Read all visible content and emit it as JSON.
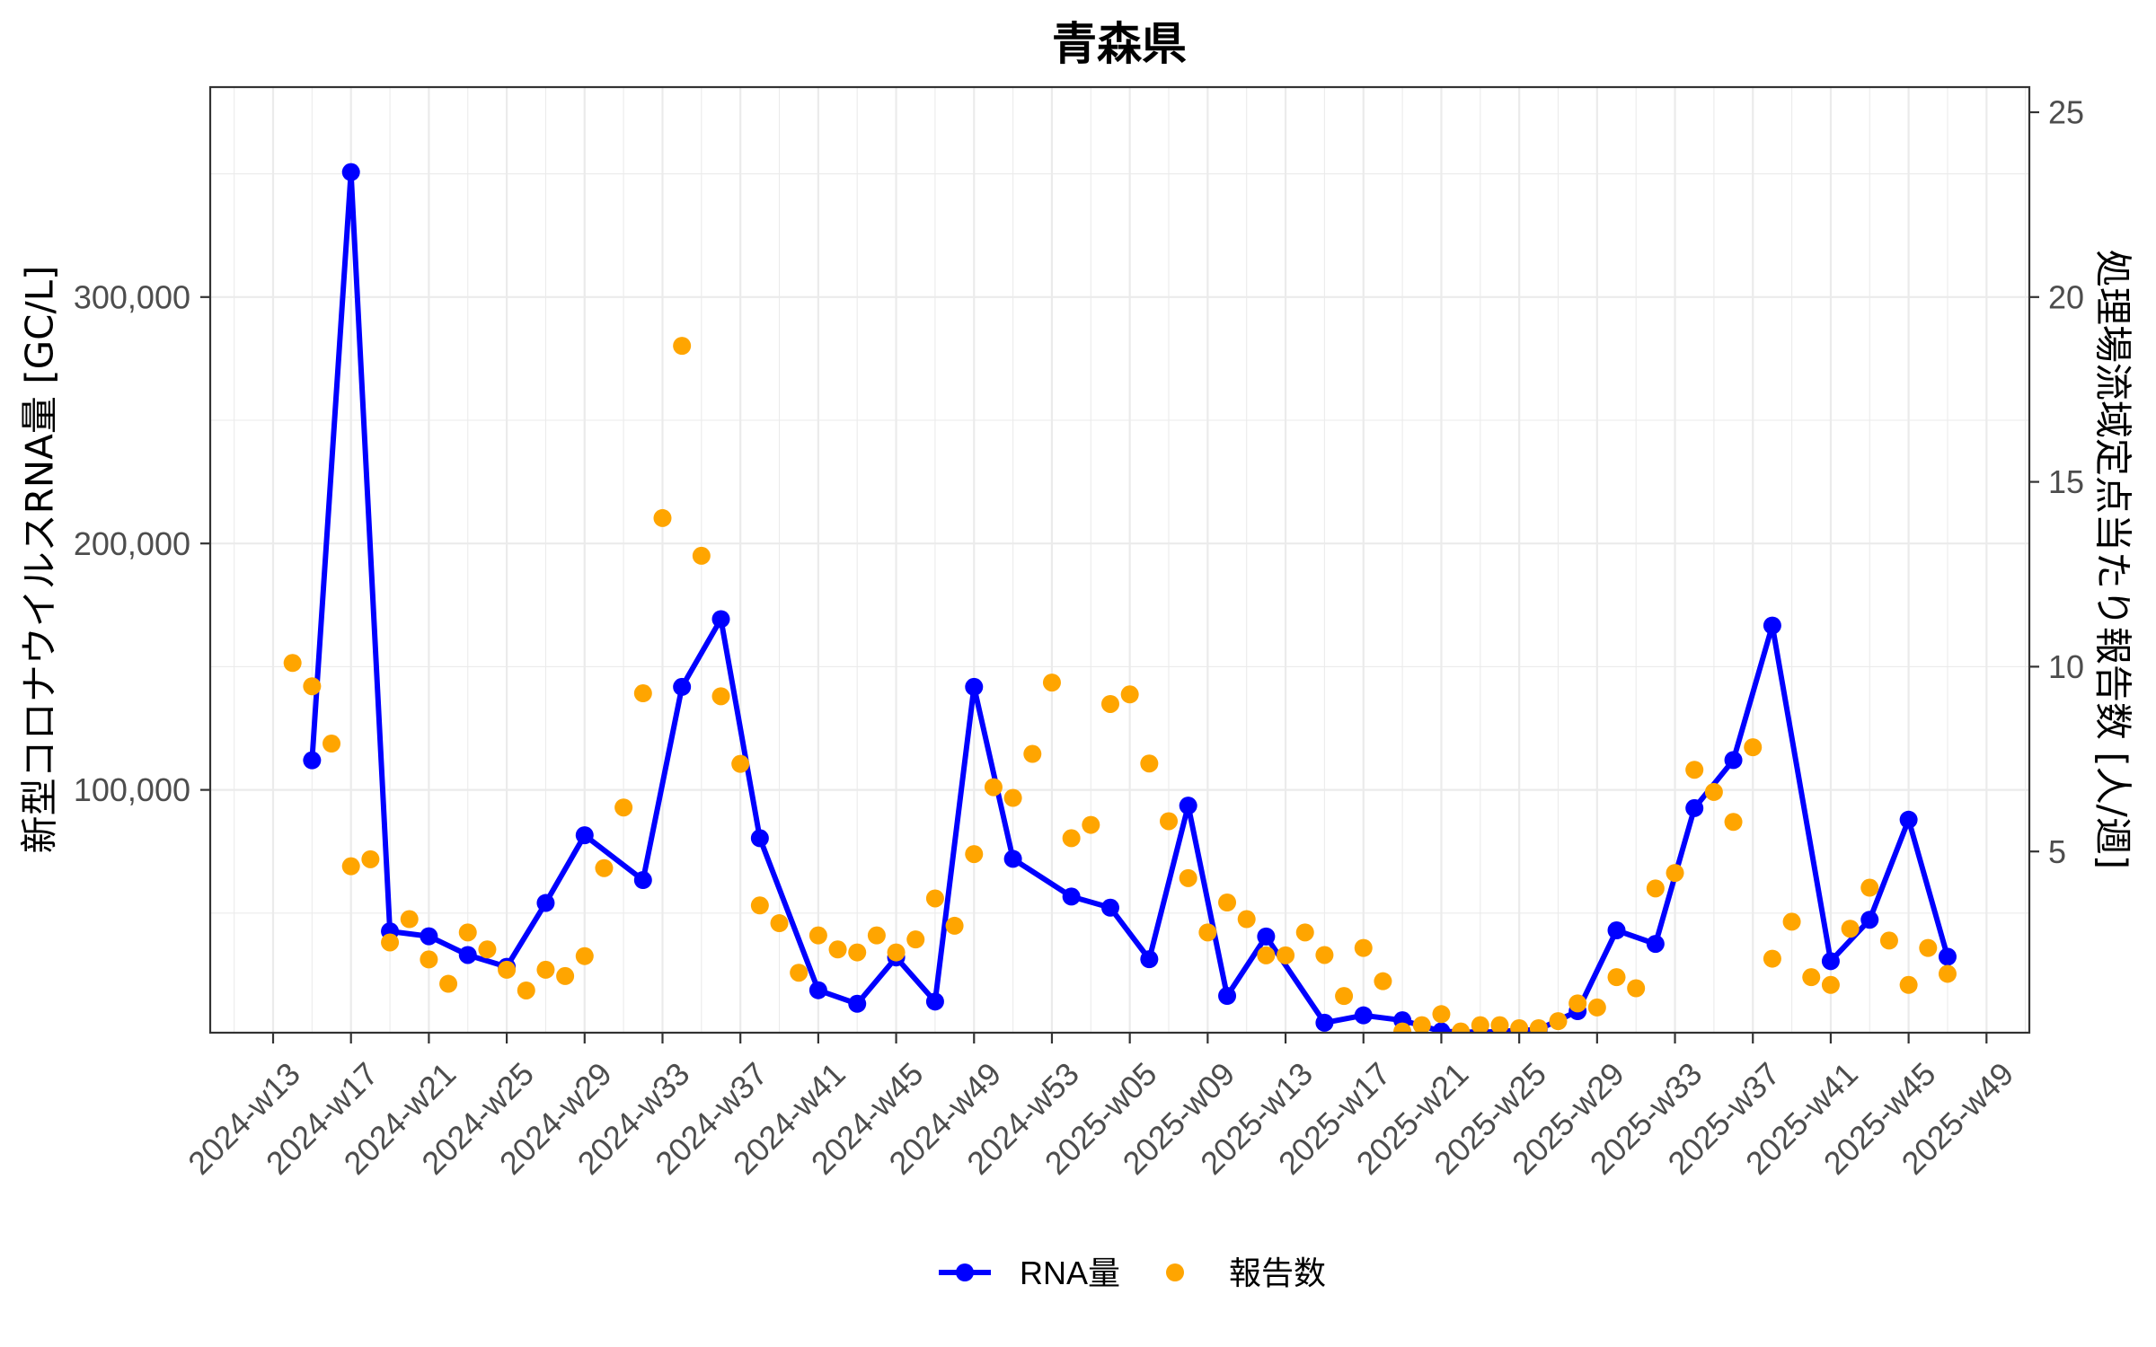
{
  "chart_data": {
    "type": "line",
    "title": "青森県",
    "xlabel": "",
    "ylabel": "新型コロナウイルスRNA量 [GC/L]",
    "y2label": "処理場流域定点当たり報告数 [人/週]",
    "x_index_origin": "2024-w13",
    "xlim_index": [
      -3.23,
      90.2
    ],
    "ylim": [
      1460,
      385200
    ],
    "y2lim": [
      0.1,
      25.68
    ],
    "y2_scale_factor": 15000,
    "grid": true,
    "x_ticks": [
      "2024-w13",
      "2024-w17",
      "2024-w21",
      "2024-w25",
      "2024-w29",
      "2024-w33",
      "2024-w37",
      "2024-w41",
      "2024-w45",
      "2024-w49",
      "2024-w53",
      "2025-w05",
      "2025-w09",
      "2025-w13",
      "2025-w17",
      "2025-w21",
      "2025-w25",
      "2025-w29",
      "2025-w33",
      "2025-w37",
      "2025-w41",
      "2025-w45",
      "2025-w49"
    ],
    "y_ticks": [
      {
        "value": 100000,
        "label": "100,000"
      },
      {
        "value": 200000,
        "label": "200,000"
      },
      {
        "value": 300000,
        "label": "300,000"
      }
    ],
    "y2_ticks": [
      {
        "value": 5,
        "label": "5"
      },
      {
        "value": 10,
        "label": "10"
      },
      {
        "value": 15,
        "label": "15"
      },
      {
        "value": 20,
        "label": "20"
      },
      {
        "value": 25,
        "label": "25"
      }
    ],
    "legend": {
      "position": "bottom",
      "entries": [
        {
          "label": "RNA量",
          "color": "#0000FF",
          "shape": "line+point"
        },
        {
          "label": "報告数",
          "color": "#FFA500",
          "shape": "point"
        }
      ]
    },
    "series": [
      {
        "name": "RNA量",
        "axis": "left",
        "type": "line+point",
        "color": "#0000FF",
        "points": [
          [
            "2024-w15",
            112000
          ],
          [
            "2024-w17",
            350700
          ],
          [
            "2024-w19",
            42600
          ],
          [
            "2024-w21",
            40600
          ],
          [
            "2024-w23",
            33000
          ],
          [
            "2024-w25",
            28200
          ],
          [
            "2024-w27",
            54100
          ],
          [
            "2024-w29",
            81600
          ],
          [
            "2024-w32",
            63400
          ],
          [
            "2024-w34",
            141800
          ],
          [
            "2024-w36",
            169300
          ],
          [
            "2024-w38",
            80400
          ],
          [
            "2024-w41",
            18700
          ],
          [
            "2024-w43",
            13200
          ],
          [
            "2024-w45",
            32000
          ],
          [
            "2024-w47",
            14100
          ],
          [
            "2024-w49",
            141800
          ],
          [
            "2024-w51",
            72000
          ],
          [
            "2025-w02",
            56700
          ],
          [
            "2025-w04",
            52200
          ],
          [
            "2025-w06",
            31300
          ],
          [
            "2025-w08",
            93600
          ],
          [
            "2025-w10",
            16400
          ],
          [
            "2025-w12",
            40500
          ],
          [
            "2025-w15",
            5500
          ],
          [
            "2025-w17",
            8500
          ],
          [
            "2025-w19",
            6500
          ],
          [
            "2025-w21",
            2000
          ],
          [
            "2025-w23",
            1600
          ],
          [
            "2025-w26",
            2800
          ],
          [
            "2025-w28",
            10200
          ],
          [
            "2025-w30",
            43000
          ],
          [
            "2025-w32",
            37500
          ],
          [
            "2025-w34",
            92600
          ],
          [
            "2025-w36",
            112100
          ],
          [
            "2025-w38",
            166700
          ],
          [
            "2025-w41",
            30500
          ],
          [
            "2025-w43",
            47300
          ],
          [
            "2025-w45",
            87900
          ],
          [
            "2025-w47",
            32300
          ]
        ]
      },
      {
        "name": "報告数",
        "axis": "right",
        "type": "scatter",
        "color": "#FFA500",
        "points": [
          [
            "2024-w14",
            10.1
          ],
          [
            "2024-w15",
            9.47
          ],
          [
            "2024-w16",
            7.92
          ],
          [
            "2024-w17",
            4.6
          ],
          [
            "2024-w18",
            4.79
          ],
          [
            "2024-w19",
            2.54
          ],
          [
            "2024-w20",
            3.17
          ],
          [
            "2024-w21",
            2.08
          ],
          [
            "2024-w22",
            1.42
          ],
          [
            "2024-w23",
            2.81
          ],
          [
            "2024-w24",
            2.35
          ],
          [
            "2024-w25",
            1.8
          ],
          [
            "2024-w26",
            1.24
          ],
          [
            "2024-w27",
            1.8
          ],
          [
            "2024-w28",
            1.63
          ],
          [
            "2024-w29",
            2.17
          ],
          [
            "2024-w30",
            4.55
          ],
          [
            "2024-w31",
            6.19
          ],
          [
            "2024-w32",
            9.28
          ],
          [
            "2024-w33",
            14.02
          ],
          [
            "2024-w34",
            18.68
          ],
          [
            "2024-w35",
            13.0
          ],
          [
            "2024-w36",
            9.2
          ],
          [
            "2024-w37",
            7.37
          ],
          [
            "2024-w38",
            3.54
          ],
          [
            "2024-w39",
            3.06
          ],
          [
            "2024-w40",
            1.72
          ],
          [
            "2024-w41",
            2.73
          ],
          [
            "2024-w42",
            2.35
          ],
          [
            "2024-w43",
            2.27
          ],
          [
            "2024-w44",
            2.73
          ],
          [
            "2024-w45",
            2.27
          ],
          [
            "2024-w46",
            2.62
          ],
          [
            "2024-w47",
            3.73
          ],
          [
            "2024-w48",
            2.99
          ],
          [
            "2024-w49",
            4.93
          ],
          [
            "2024-w50",
            6.74
          ],
          [
            "2024-w51",
            6.45
          ],
          [
            "2024-w52",
            7.64
          ],
          [
            "2024-w53",
            9.57
          ],
          [
            "2025-w02",
            5.36
          ],
          [
            "2025-w03",
            5.72
          ],
          [
            "2025-w04",
            8.99
          ],
          [
            "2025-w05",
            9.25
          ],
          [
            "2025-w06",
            7.38
          ],
          [
            "2025-w07",
            5.82
          ],
          [
            "2025-w08",
            4.28
          ],
          [
            "2025-w09",
            2.81
          ],
          [
            "2025-w10",
            3.62
          ],
          [
            "2025-w11",
            3.17
          ],
          [
            "2025-w12",
            2.19
          ],
          [
            "2025-w13",
            2.19
          ],
          [
            "2025-w14",
            2.81
          ],
          [
            "2025-w15",
            2.2
          ],
          [
            "2025-w16",
            1.09
          ],
          [
            "2025-w17",
            2.39
          ],
          [
            "2025-w18",
            1.49
          ],
          [
            "2025-w19",
            0.13
          ],
          [
            "2025-w20",
            0.3
          ],
          [
            "2025-w21",
            0.6
          ],
          [
            "2025-w22",
            0.13
          ],
          [
            "2025-w23",
            0.3
          ],
          [
            "2025-w24",
            0.3
          ],
          [
            "2025-w25",
            0.22
          ],
          [
            "2025-w26",
            0.22
          ],
          [
            "2025-w27",
            0.41
          ],
          [
            "2025-w28",
            0.89
          ],
          [
            "2025-w29",
            0.78
          ],
          [
            "2025-w30",
            1.6
          ],
          [
            "2025-w31",
            1.3
          ],
          [
            "2025-w32",
            4.0
          ],
          [
            "2025-w33",
            4.42
          ],
          [
            "2025-w34",
            7.21
          ],
          [
            "2025-w35",
            6.61
          ],
          [
            "2025-w36",
            5.8
          ],
          [
            "2025-w37",
            7.82
          ],
          [
            "2025-w38",
            2.1
          ],
          [
            "2025-w39",
            3.1
          ],
          [
            "2025-w40",
            1.6
          ],
          [
            "2025-w41",
            1.39
          ],
          [
            "2025-w42",
            2.91
          ],
          [
            "2025-w43",
            4.02
          ],
          [
            "2025-w44",
            2.59
          ],
          [
            "2025-w45",
            1.39
          ],
          [
            "2025-w46",
            2.39
          ],
          [
            "2025-w47",
            1.69
          ]
        ]
      }
    ]
  }
}
